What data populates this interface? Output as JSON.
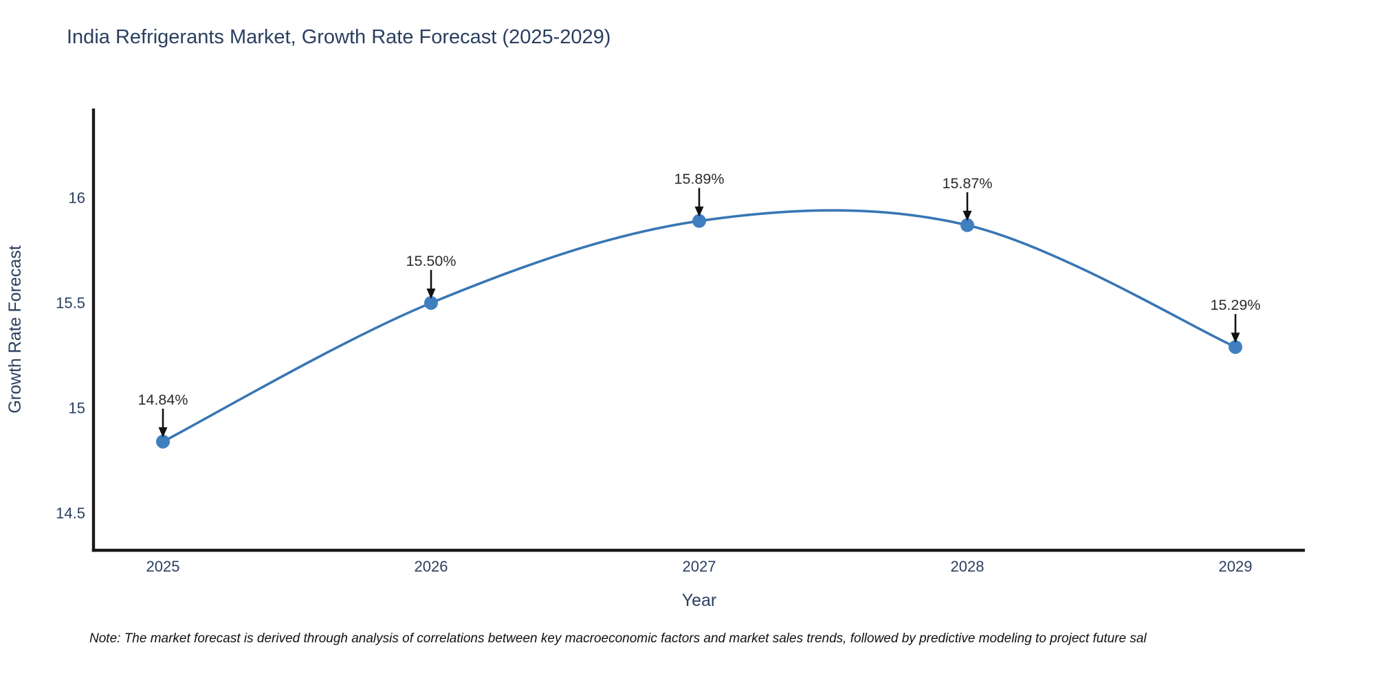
{
  "chart_data": {
    "type": "line",
    "title": "India Refrigerants Market, Growth Rate Forecast (2025-2029)",
    "xlabel": "Year",
    "ylabel": "Growth Rate Forecast",
    "x": [
      2025,
      2026,
      2027,
      2028,
      2029
    ],
    "y": [
      14.84,
      15.5,
      15.89,
      15.87,
      15.29
    ],
    "point_labels": [
      "14.84%",
      "15.50%",
      "15.89%",
      "15.87%",
      "15.29%"
    ],
    "xtick_values": [
      2025,
      2026,
      2027,
      2028,
      2029
    ],
    "xtick_labels": [
      "2025",
      "2026",
      "2027",
      "2028",
      "2029"
    ],
    "ytick_values": [
      14.5,
      15,
      15.5,
      16
    ],
    "ytick_labels": [
      "14.5",
      "15",
      "15.5",
      "16"
    ],
    "xlim": [
      2024.741,
      2029.259
    ],
    "ylim": [
      14.323,
      16.425
    ],
    "line_shape": "spline",
    "grid": false,
    "legend": false,
    "colors": {
      "line": "#3876b4",
      "marker": "#3f7fbf",
      "axis_text": "#2a3f5f",
      "annotation_text": "#2b2b2b",
      "arrow": "#111111",
      "spine": "#1a1a1a"
    }
  },
  "note": "Note: The market forecast is derived through analysis of correlations between key macroeconomic factors and market sales trends, followed by predictive modeling to project future sal"
}
